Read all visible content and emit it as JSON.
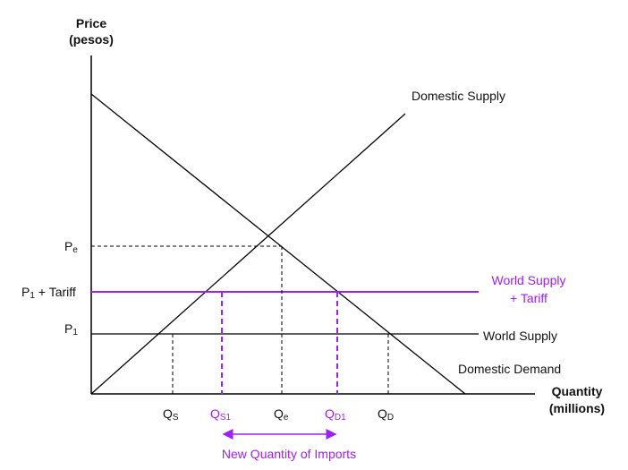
{
  "axes": {
    "y_title": [
      "Price",
      "(pesos)"
    ],
    "x_title": [
      "Quantity",
      "(millions)"
    ]
  },
  "price_labels": [
    {
      "base": "P",
      "sub": "e"
    },
    {
      "base": "P",
      "sub": "1",
      "suffix": "+ Tariff"
    },
    {
      "base": "P",
      "sub": "1"
    }
  ],
  "quantity_labels": [
    {
      "base": "Q",
      "sub": "S"
    },
    {
      "base": "Q",
      "sub": "S1"
    },
    {
      "base": "Q",
      "sub": "e"
    },
    {
      "base": "Q",
      "sub": "D1"
    },
    {
      "base": "Q",
      "sub": "D"
    }
  ],
  "curve_labels": {
    "domestic_supply": "Domestic Supply",
    "domestic_demand": "Domestic Demand",
    "world_supply": "World Supply",
    "world_supply_tariff": [
      "World Supply",
      "+ Tariff"
    ]
  },
  "annotation": "New Quantity of Imports"
}
